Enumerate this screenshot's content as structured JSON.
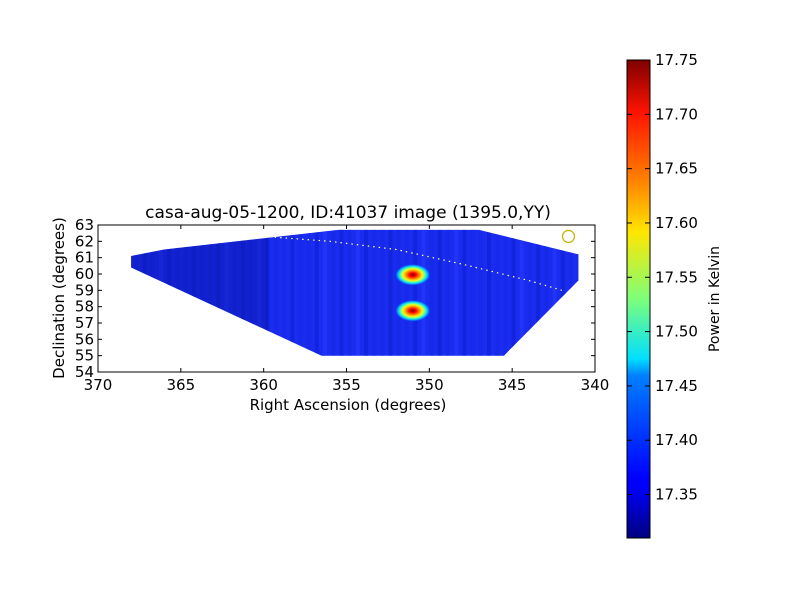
{
  "chart_data": {
    "type": "heatmap",
    "title": "casa-aug-05-1200, ID:41037 image (1395.0,YY)",
    "xlabel": "Right Ascension (degrees)",
    "ylabel": "Declination (degrees)",
    "xlim": [
      370,
      340
    ],
    "ylim": [
      54,
      63
    ],
    "x_ticks": [
      "370",
      "365",
      "360",
      "355",
      "350",
      "345",
      "340"
    ],
    "y_ticks": [
      "54",
      "55",
      "56",
      "57",
      "58",
      "59",
      "60",
      "61",
      "62",
      "63"
    ],
    "colorbar": {
      "label": "Power in Kelvin",
      "min": 17.31,
      "max": 17.75,
      "ticks": [
        "17.35",
        "17.40",
        "17.45",
        "17.50",
        "17.55",
        "17.60",
        "17.65",
        "17.70",
        "17.75"
      ],
      "colormap": "jet"
    },
    "coverage_polygon": [
      [
        368.0,
        61.1
      ],
      [
        366.0,
        61.5
      ],
      [
        355.5,
        62.7
      ],
      [
        347.0,
        62.7
      ],
      [
        341.0,
        61.2
      ],
      [
        341.0,
        59.6
      ],
      [
        345.5,
        55.0
      ],
      [
        356.5,
        55.0
      ],
      [
        368.0,
        60.4
      ]
    ],
    "background_level": 17.36,
    "sources": [
      {
        "ra": 351.0,
        "dec": 59.95,
        "peak": 17.75
      },
      {
        "ra": 351.0,
        "dec": 57.75,
        "peak": 17.75
      }
    ],
    "dotted_track": [
      [
        360.0,
        62.3
      ],
      [
        356.0,
        62.0
      ],
      [
        352.0,
        61.5
      ],
      [
        348.0,
        60.6
      ],
      [
        344.0,
        59.6
      ],
      [
        342.0,
        59.0
      ]
    ],
    "circle_marker": {
      "ra": 341.6,
      "dec": 62.3,
      "color": "#c8b400"
    }
  }
}
